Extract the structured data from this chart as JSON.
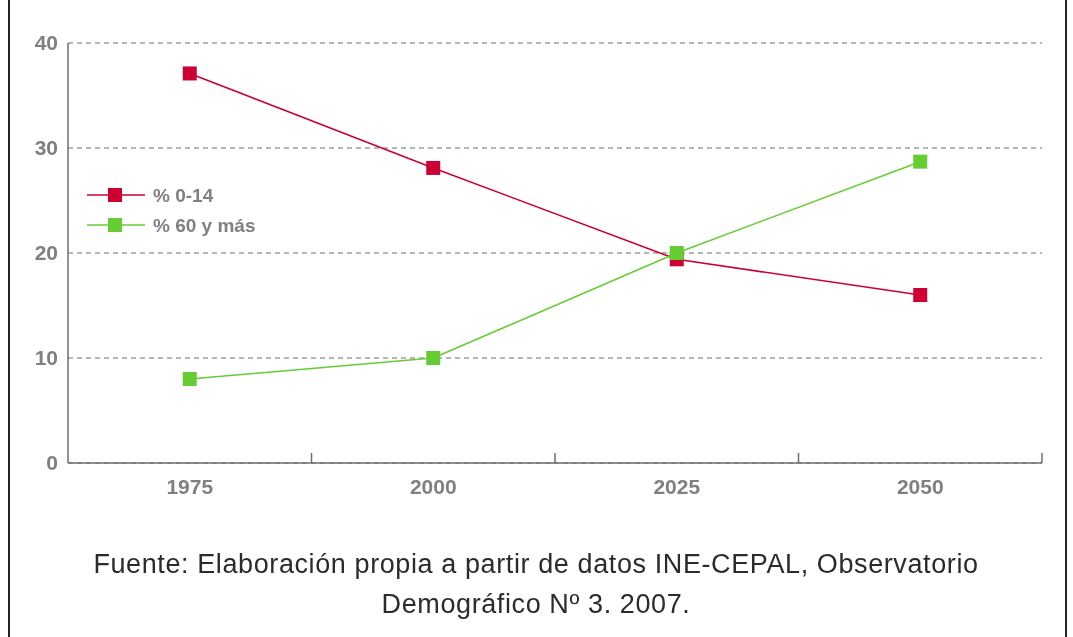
{
  "chart_data": {
    "type": "line",
    "categories": [
      "1975",
      "2000",
      "2025",
      "2050"
    ],
    "series": [
      {
        "name": "% 0-14",
        "color": "#cc0033",
        "values": [
          37.1,
          28.1,
          19.4,
          16.0
        ]
      },
      {
        "name": "% 60 y más",
        "color": "#66cc33",
        "values": [
          8,
          10,
          20,
          28.7
        ]
      }
    ],
    "ylim": [
      0,
      40
    ],
    "yticks": [
      0,
      10,
      20,
      30,
      40
    ],
    "grid": "y",
    "legend": "top left",
    "marker": "square",
    "line_style": "solid",
    "annotations": [
      "Fuente: Elaboración propia a partir de datos INE-CEPAL, Observatorio Demográfico Nº 3. 2007."
    ]
  }
}
